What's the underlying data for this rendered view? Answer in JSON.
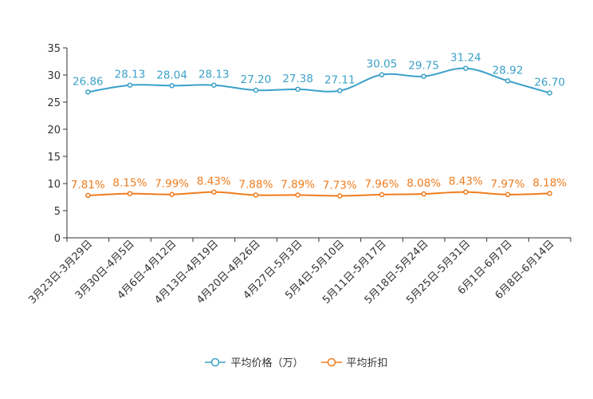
{
  "chart_data": {
    "type": "line",
    "title": "",
    "xlabel": "",
    "ylabel": "",
    "ylim": [
      0,
      35
    ],
    "yticks": [
      "0",
      "5",
      "10",
      "15",
      "20",
      "25",
      "30",
      "35"
    ],
    "categories": [
      "3月23日-3月29日",
      "3月30日-4月5日",
      "4月6日-4月12日",
      "4月13日-4月19日",
      "4月20日-4月26日",
      "4月27日-5月3日",
      "5月4日-5月10日",
      "5月11日-5月17日",
      "5月18日-5月24日",
      "5月25日-5月31日",
      "6月1日-6月7日",
      "6月8日-6月14日"
    ],
    "series": [
      {
        "name": "平均价格（万）",
        "color": "#3ba1c9",
        "values": [
          26.86,
          28.13,
          28.04,
          28.13,
          27.2,
          27.38,
          27.11,
          30.05,
          29.75,
          31.24,
          28.92,
          26.7
        ],
        "labels": [
          "26.86",
          "28.13",
          "28.04",
          "28.13",
          "27.20",
          "27.38",
          "27.11",
          "30.05",
          "29.75",
          "31.24",
          "28.92",
          "26.70"
        ]
      },
      {
        "name": "平均折扣",
        "color": "#f07c1e",
        "values": [
          7.81,
          8.15,
          7.99,
          8.43,
          7.88,
          7.89,
          7.73,
          7.96,
          8.08,
          8.43,
          7.97,
          8.18
        ],
        "labels": [
          "7.81%",
          "8.15%",
          "7.99%",
          "8.43%",
          "7.88%",
          "7.89%",
          "7.73%",
          "7.96%",
          "8.08%",
          "8.43%",
          "7.97%",
          "8.18%"
        ]
      }
    ],
    "legend_position": "bottom-center",
    "grid": false
  }
}
